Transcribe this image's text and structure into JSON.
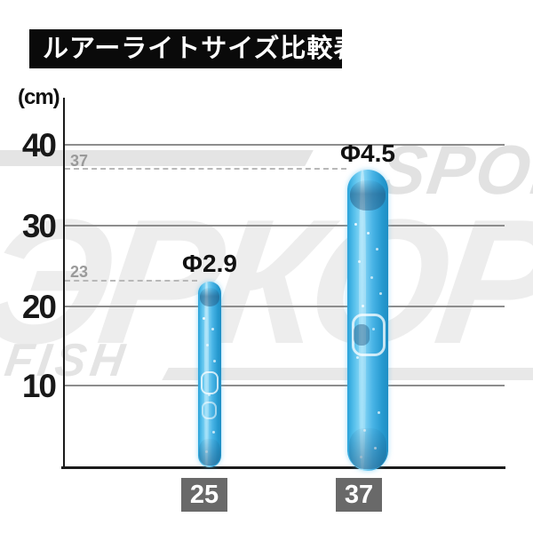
{
  "title": "ルアーライトサイズ比較表",
  "axis": {
    "unit_label": "(cm)",
    "yticks": [
      "40",
      "30",
      "20",
      "10"
    ],
    "ref_labels": {
      "top": "37",
      "bottom": "23"
    }
  },
  "watermark": {
    "sport": "SPORT",
    "brand": "ЭРКОР",
    "fish": "FISH"
  },
  "sticks": [
    {
      "size_label": "25",
      "diameter_label": "Φ2.9",
      "length_cm": 23
    },
    {
      "size_label": "37",
      "diameter_label": "Φ4.5",
      "length_cm": 37
    }
  ],
  "colors": {
    "stick_blue": "#49b4e6",
    "badge_gray": "#696969",
    "title_bg": "#0a0a0a",
    "grid_gray": "#8d8d8d",
    "ref_dash_gray": "#b8b8b8",
    "watermark_gray": "#e8e8e8"
  },
  "chart_data": {
    "type": "bar",
    "title": "ルアーライトサイズ比較表",
    "xlabel": "",
    "ylabel": "(cm)",
    "categories": [
      "25",
      "37"
    ],
    "series": [
      {
        "name": "length_cm",
        "values": [
          23,
          37
        ]
      }
    ],
    "bar_annotations": [
      "Φ2.9",
      "Φ4.5"
    ],
    "reference_lines": [
      37,
      23
    ],
    "yticks": [
      10,
      20,
      30,
      40
    ],
    "ylim": [
      0,
      44
    ],
    "grid": true,
    "legend": false
  }
}
